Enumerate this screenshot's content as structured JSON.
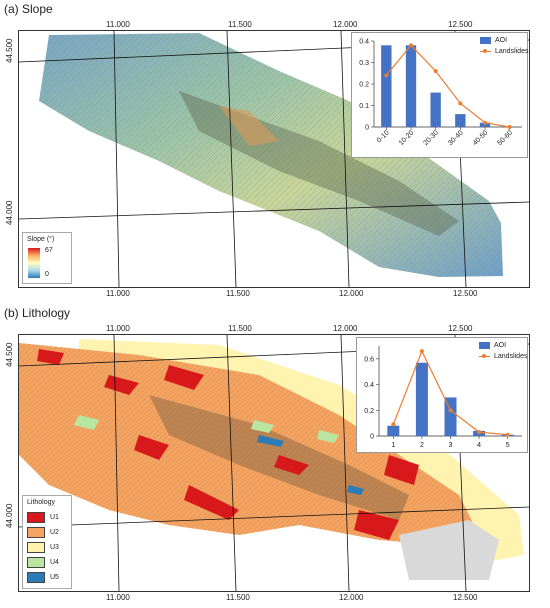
{
  "panels": [
    {
      "title": "(a) Slope",
      "top_lon_labels": [
        "11.000",
        "11.500",
        "12.000",
        "12.500"
      ],
      "bottom_lon_labels": [
        "11.000",
        "11.500",
        "12.000",
        "12.500"
      ],
      "lat_labels": [
        "44.500",
        "44.000"
      ],
      "legend": {
        "title": "Slope (°)",
        "max": "67",
        "min": "0"
      }
    },
    {
      "title": "(b) Lithology",
      "top_lon_labels": [
        "11.000",
        "11.500",
        "12.000",
        "12.500"
      ],
      "bottom_lon_labels": [
        "11.000",
        "11.500",
        "12.000",
        "12.500"
      ],
      "lat_labels": [
        "44.500",
        "44.000"
      ],
      "legend": {
        "title": "Lithology",
        "items": [
          {
            "label": "U1",
            "color": "#d7191c"
          },
          {
            "label": "U2",
            "color": "#f4a460"
          },
          {
            "label": "U3",
            "color": "#fff3b0"
          },
          {
            "label": "U4",
            "color": "#b8e6a0"
          },
          {
            "label": "U5",
            "color": "#2c7bb6"
          }
        ]
      }
    }
  ],
  "chart_data": [
    {
      "type": "bar",
      "categories": [
        "0-10",
        "10-20",
        "20-30",
        "30-40",
        "40-50",
        "50-60"
      ],
      "series": [
        {
          "name": "AOI",
          "values": [
            0.38,
            0.38,
            0.16,
            0.06,
            0.02,
            0.0
          ]
        },
        {
          "name": "Landslides",
          "values": [
            0.24,
            0.38,
            0.26,
            0.11,
            0.02,
            0.0
          ]
        }
      ],
      "yticks": [
        "0",
        "0.1",
        "0.2",
        "0.3",
        "0.4"
      ],
      "ylim": [
        0,
        0.4
      ],
      "legend": "top-right"
    },
    {
      "type": "bar",
      "categories": [
        "1",
        "2",
        "3",
        "4",
        "5"
      ],
      "series": [
        {
          "name": "AOI",
          "values": [
            0.08,
            0.57,
            0.3,
            0.04,
            0.01
          ]
        },
        {
          "name": "Landslides",
          "values": [
            0.09,
            0.66,
            0.2,
            0.03,
            0.01
          ]
        }
      ],
      "yticks": [
        "0",
        "0.2",
        "0.4",
        "0.6"
      ],
      "ylim": [
        0,
        0.7
      ],
      "legend": "top-right"
    }
  ],
  "colors": {
    "aoi_bar": "#4472c4",
    "landslide_line": "#ed7d31"
  }
}
